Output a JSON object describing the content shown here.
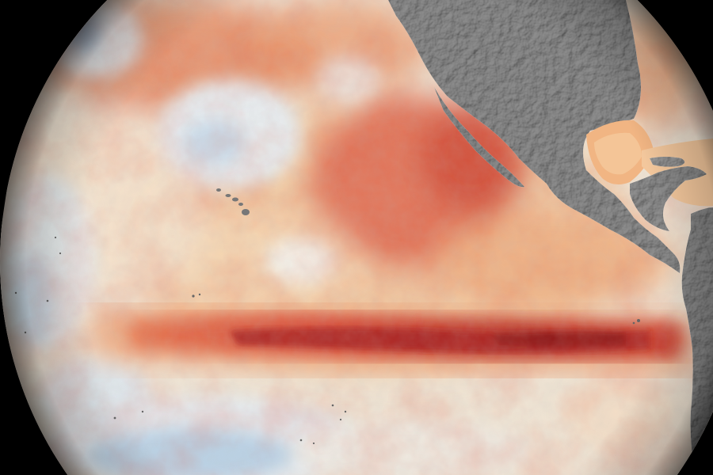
{
  "map": {
    "palette": {
      "space": "#000000",
      "neutral": "#ecebe4",
      "cool_light": "#c9dcea",
      "cool": "#9cc0dc",
      "cool_strong": "#6f9ec6",
      "warm_light": "#f6cfa2",
      "warm": "#eea478",
      "warm_strong": "#e0624a",
      "hot": "#c83426",
      "hottest": "#8e1a17",
      "land": "#8d8d8d",
      "land_light": "#a6a6a6",
      "land_dark": "#6f6f6f"
    },
    "features": [
      "globe-disc",
      "ocean-temperature-anomaly-field",
      "equatorial-warm-band",
      "north-america-landmass",
      "baja-california-peninsula",
      "gulf-of-mexico",
      "central-america-isthmus",
      "south-america-landmass",
      "hawaiian-islands",
      "limb-shading"
    ]
  }
}
